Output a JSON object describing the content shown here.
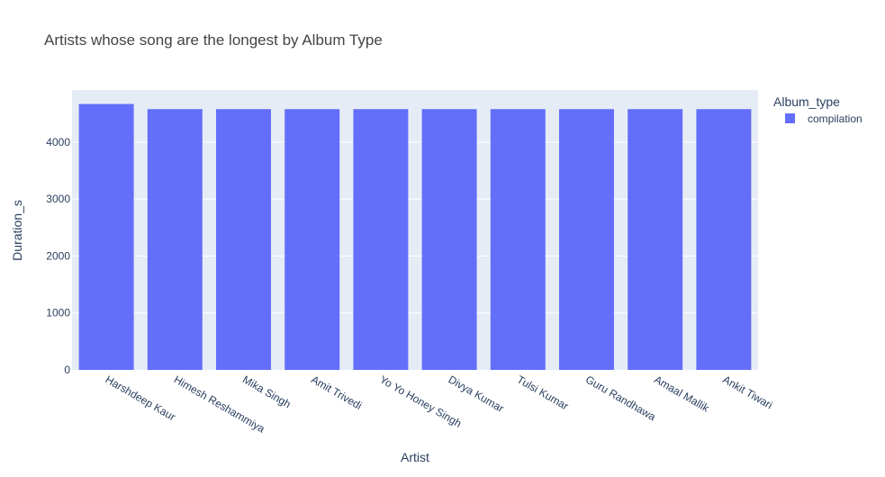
{
  "colors": {
    "bar": "#636efa",
    "plot_bg": "#e5ecf6",
    "grid": "#ffffff",
    "text": "#2a3f5f",
    "title": "#444444"
  },
  "legend": {
    "title": "Album_type",
    "placement": "top-right",
    "items": [
      {
        "name": "compilation",
        "color": "#636efa"
      }
    ]
  },
  "chart_data": {
    "type": "bar",
    "title": "Artists whose song are the longest by Album Type",
    "xlabel": "Artist",
    "ylabel": "Duration_s",
    "categories": [
      "Harshdeep Kaur",
      "Himesh Reshammiya",
      "Mika Singh",
      "Amit Trivedi",
      "Yo Yo Honey Singh",
      "Divya Kumar",
      "Tulsi Kumar",
      "Guru Randhawa",
      "Amaal Mallik",
      "Ankit Tiwari"
    ],
    "series": [
      {
        "name": "compilation",
        "values": [
          4670,
          4580,
          4580,
          4580,
          4580,
          4580,
          4580,
          4580,
          4580,
          4580
        ]
      }
    ],
    "ylim": [
      0,
      4916
    ],
    "yticks": [
      0,
      1000,
      2000,
      3000,
      4000
    ],
    "grid": true
  }
}
